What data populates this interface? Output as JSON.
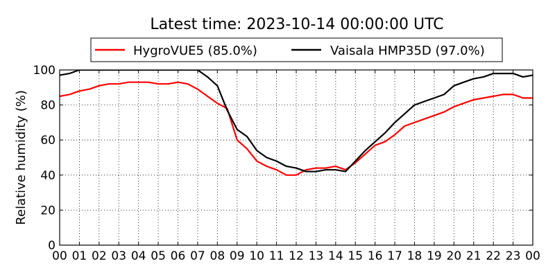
{
  "chart_data": {
    "type": "line",
    "title": "Latest time: 2023-10-14 00:00:00 UTC",
    "xlabel": "",
    "ylabel": "Relative humidity (%)",
    "xlim": [
      0,
      24
    ],
    "ylim": [
      0,
      100
    ],
    "grid": true,
    "legend_position": "top-center, above plot",
    "x_tick_labels": [
      "00",
      "01",
      "02",
      "03",
      "04",
      "05",
      "06",
      "07",
      "08",
      "09",
      "10",
      "11",
      "12",
      "13",
      "14",
      "15",
      "16",
      "17",
      "18",
      "19",
      "20",
      "21",
      "22",
      "23",
      "00"
    ],
    "y_ticks": [
      0,
      20,
      40,
      60,
      80,
      100
    ],
    "x": [
      0,
      0.5,
      1,
      1.5,
      2,
      2.5,
      3,
      3.5,
      4,
      4.5,
      5,
      5.5,
      6,
      6.5,
      7,
      7.5,
      8,
      8.5,
      9,
      9.5,
      10,
      10.5,
      11,
      11.5,
      12,
      12.5,
      13,
      13.5,
      14,
      14.5,
      15,
      15.5,
      16,
      16.5,
      17,
      17.5,
      18,
      18.5,
      19,
      19.5,
      20,
      20.5,
      21,
      21.5,
      22,
      22.5,
      23,
      23.5,
      24
    ],
    "series": [
      {
        "name": "HygroVUE5 (85.0%)",
        "color": "#ff0000",
        "values": [
          85,
          86,
          88,
          89,
          91,
          92,
          92,
          93,
          93,
          93,
          92,
          92,
          93,
          92,
          89,
          85,
          81,
          78,
          60,
          55,
          48,
          45,
          43,
          40,
          40,
          43,
          44,
          44,
          45,
          43,
          47,
          52,
          57,
          59,
          63,
          68,
          70,
          72,
          74,
          76,
          79,
          81,
          83,
          84,
          85,
          86,
          86,
          84,
          84
        ]
      },
      {
        "name": "Vaisala HMP35D (97.0%)",
        "color": "#000000",
        "values": [
          97,
          98,
          100,
          100,
          100,
          100,
          100,
          100,
          100,
          100,
          100,
          100,
          100,
          100,
          100,
          96,
          91,
          77,
          66,
          62,
          54,
          50,
          48,
          45,
          44,
          42,
          42,
          43,
          43,
          42,
          48,
          54,
          59,
          64,
          70,
          75,
          80,
          82,
          84,
          86,
          91,
          93,
          95,
          96,
          98,
          98,
          98,
          96,
          97
        ]
      }
    ]
  }
}
